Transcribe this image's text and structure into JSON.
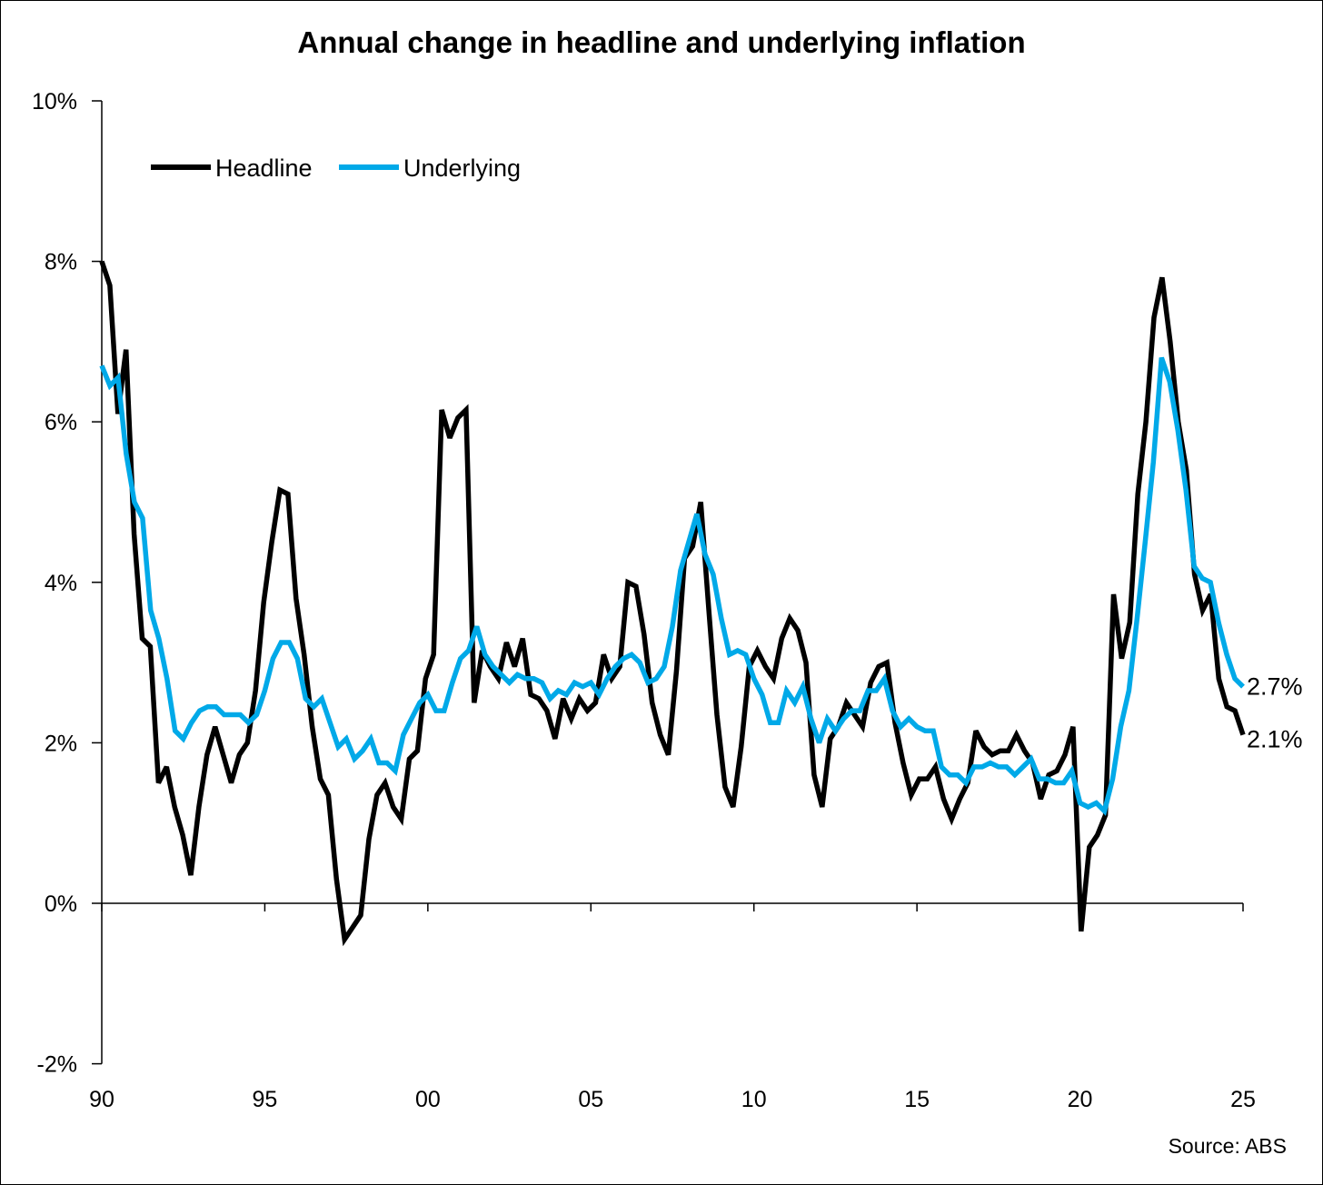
{
  "chart_data": {
    "type": "line",
    "title": "Annual change in headline and underlying inflation",
    "xlabel": "",
    "ylabel": "",
    "x_start": 1990,
    "x_end": 2025,
    "xlim": [
      1990,
      2025
    ],
    "ylim": [
      -2,
      10
    ],
    "x_ticks": [
      1990,
      1995,
      2000,
      2005,
      2010,
      2015,
      2020,
      2025
    ],
    "x_tick_labels": [
      "90",
      "95",
      "00",
      "05",
      "10",
      "15",
      "20",
      "25"
    ],
    "y_ticks": [
      -2,
      0,
      2,
      4,
      6,
      8,
      10
    ],
    "y_tick_labels": [
      "-2%",
      "0%",
      "2%",
      "4%",
      "6%",
      "8%",
      "10%"
    ],
    "grid": false,
    "legend_position": "top-left",
    "series": [
      {
        "name": "Headline",
        "color": "#000000",
        "end_label": "2.1%",
        "values": [
          8.0,
          7.7,
          6.1,
          6.9,
          4.6,
          3.3,
          3.2,
          1.5,
          1.7,
          1.2,
          0.85,
          0.35,
          1.2,
          1.85,
          2.2,
          1.85,
          1.5,
          1.85,
          2.0,
          2.65,
          3.75,
          4.5,
          5.15,
          5.1,
          3.8,
          3.1,
          2.2,
          1.55,
          1.35,
          0.3,
          -0.45,
          -0.3,
          -0.15,
          0.8,
          1.35,
          1.5,
          1.2,
          1.05,
          1.8,
          1.9,
          2.8,
          3.1,
          6.15,
          5.8,
          6.05,
          6.15,
          2.5,
          3.15,
          2.95,
          2.8,
          3.25,
          2.95,
          3.3,
          2.6,
          2.55,
          2.4,
          2.05,
          2.55,
          2.3,
          2.55,
          2.4,
          2.5,
          3.1,
          2.8,
          2.95,
          4.0,
          3.95,
          3.35,
          2.5,
          2.1,
          1.85,
          2.9,
          4.3,
          4.45,
          5.0,
          3.65,
          2.35,
          1.45,
          1.2,
          1.95,
          2.95,
          3.15,
          2.95,
          2.8,
          3.3,
          3.55,
          3.4,
          3.0,
          1.6,
          1.2,
          2.05,
          2.2,
          2.5,
          2.35,
          2.2,
          2.75,
          2.95,
          3.0,
          2.25,
          1.75,
          1.35,
          1.55,
          1.55,
          1.7,
          1.3,
          1.05,
          1.3,
          1.5,
          2.15,
          1.95,
          1.85,
          1.9,
          1.9,
          2.1,
          1.9,
          1.75,
          1.3,
          1.6,
          1.65,
          1.85,
          2.2,
          -0.35,
          0.7,
          0.85,
          1.1,
          3.85,
          3.05,
          3.5,
          5.1,
          6.0,
          7.3,
          7.8,
          7.0,
          6.0,
          5.4,
          4.1,
          3.65,
          3.85,
          2.8,
          2.45,
          2.4,
          2.1
        ]
      },
      {
        "name": "Underlying",
        "color": "#00A9E8",
        "end_label": "2.7%",
        "values": [
          6.7,
          6.45,
          6.55,
          5.6,
          5.0,
          4.8,
          3.65,
          3.3,
          2.8,
          2.15,
          2.05,
          2.25,
          2.4,
          2.45,
          2.45,
          2.35,
          2.35,
          2.35,
          2.25,
          2.35,
          2.65,
          3.05,
          3.25,
          3.25,
          3.05,
          2.55,
          2.45,
          2.55,
          2.25,
          1.95,
          2.05,
          1.8,
          1.9,
          2.05,
          1.75,
          1.75,
          1.65,
          2.1,
          2.3,
          2.5,
          2.6,
          2.4,
          2.4,
          2.75,
          3.05,
          3.15,
          3.45,
          3.1,
          2.95,
          2.85,
          2.75,
          2.85,
          2.8,
          2.8,
          2.75,
          2.55,
          2.65,
          2.6,
          2.75,
          2.7,
          2.75,
          2.6,
          2.8,
          2.95,
          3.05,
          3.1,
          3.0,
          2.75,
          2.8,
          2.95,
          3.45,
          4.15,
          4.5,
          4.85,
          4.35,
          4.1,
          3.55,
          3.1,
          3.15,
          3.1,
          2.8,
          2.6,
          2.25,
          2.25,
          2.65,
          2.5,
          2.7,
          2.3,
          2.0,
          2.3,
          2.15,
          2.3,
          2.4,
          2.4,
          2.65,
          2.65,
          2.8,
          2.4,
          2.2,
          2.3,
          2.2,
          2.15,
          2.15,
          1.7,
          1.6,
          1.6,
          1.5,
          1.7,
          1.7,
          1.75,
          1.7,
          1.7,
          1.6,
          1.7,
          1.8,
          1.55,
          1.55,
          1.5,
          1.5,
          1.65,
          1.25,
          1.2,
          1.25,
          1.15,
          1.55,
          2.2,
          2.65,
          3.55,
          4.5,
          5.5,
          6.8,
          6.5,
          5.9,
          5.15,
          4.2,
          4.05,
          4.0,
          3.5,
          3.1,
          2.8,
          2.7
        ]
      }
    ],
    "source": "Source: ABS"
  }
}
